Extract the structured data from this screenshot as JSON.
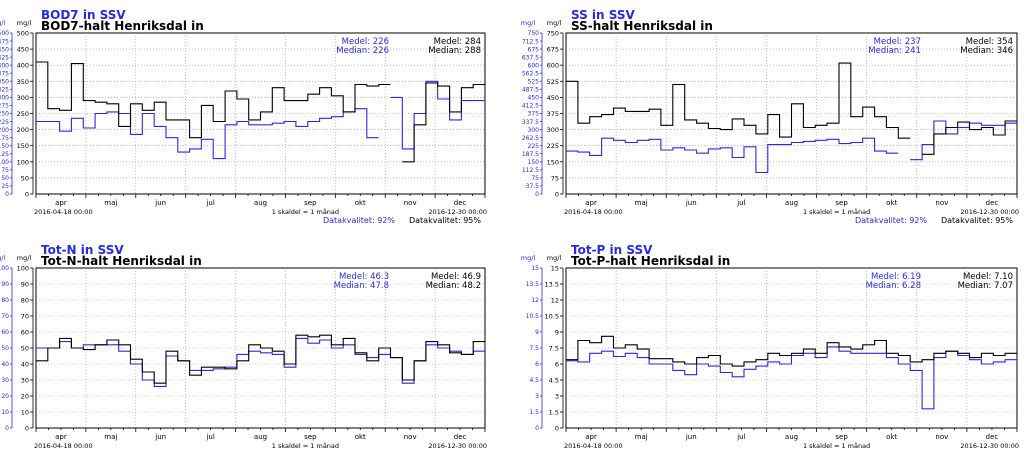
{
  "colors": {
    "blue": "#2a2ad8",
    "black": "#000000",
    "grid": "#9a9a9a"
  },
  "months": [
    "apr",
    "maj",
    "jun",
    "jul",
    "aug",
    "sep",
    "okt",
    "nov",
    "dec"
  ],
  "chart_data": [
    {
      "type": "line",
      "title_blue": "BOD7 in SSV",
      "title_black": "BOD7-halt Henriksdal in",
      "unit_left": "mg/l",
      "unit_right": "mg/l",
      "ylim_blue": [
        0,
        500
      ],
      "ylim_black": [
        0,
        500
      ],
      "yticks_blue": [
        "0",
        "25",
        "50",
        "75",
        "100",
        "125",
        "150",
        "175",
        "200",
        "225",
        "250",
        "275",
        "300",
        "325",
        "350",
        "375",
        "400",
        "425",
        "450",
        "475",
        "500"
      ],
      "yticks_black": [
        "0",
        "50",
        "100",
        "150",
        "200",
        "250",
        "300",
        "350",
        "400",
        "450",
        "500"
      ],
      "date_start": "2016-04-18 00:00",
      "date_end": "2016-12-30 00:00",
      "scale_note": "1 skaldel = 1 månad",
      "blue_stats": [
        "Medel: 226",
        "Median: 226"
      ],
      "black_stats": [
        "Medel: 284",
        "Median: 288"
      ],
      "quality_blue": "Datakvalitet: 92%",
      "quality_black": "Datakvalitet: 95%",
      "series": [
        {
          "name": "BOD7 in SSV",
          "color": "blue",
          "values": [
            225,
            225,
            195,
            235,
            205,
            250,
            255,
            250,
            185,
            250,
            210,
            175,
            130,
            140,
            170,
            110,
            215,
            225,
            215,
            215,
            220,
            225,
            210,
            225,
            235,
            240,
            255,
            265,
            175,
            null,
            300,
            140,
            250,
            350,
            295,
            230,
            290,
            290
          ]
        },
        {
          "name": "BOD7-halt Henriksdal in",
          "color": "black",
          "values": [
            410,
            265,
            260,
            405,
            290,
            285,
            280,
            210,
            280,
            260,
            285,
            230,
            230,
            175,
            275,
            225,
            320,
            295,
            230,
            255,
            330,
            290,
            290,
            310,
            330,
            305,
            255,
            340,
            335,
            340,
            null,
            100,
            215,
            345,
            335,
            255,
            330,
            340
          ]
        }
      ]
    },
    {
      "type": "line",
      "title_blue": "SS in SSV",
      "title_black": "SS-halt Henriksdal in",
      "unit_left": "mg/l",
      "unit_right": "mg/l",
      "ylim_blue": [
        0,
        750
      ],
      "ylim_black": [
        0,
        750
      ],
      "yticks_blue": [
        "0",
        "37.5",
        "75",
        "112.5",
        "150",
        "187.5",
        "225",
        "262.5",
        "300",
        "337.5",
        "375",
        "412.5",
        "450",
        "487.5",
        "525",
        "562.5",
        "600",
        "637.5",
        "675",
        "712.5",
        "750"
      ],
      "yticks_black": [
        "0",
        "75",
        "150",
        "225",
        "300",
        "375",
        "450",
        "525",
        "600",
        "675",
        "750"
      ],
      "date_start": "2016-04-18 00:00",
      "date_end": "2016-12-30 00:00",
      "scale_note": "1 skaldel = 1 månad",
      "blue_stats": [
        "Medel: 237",
        "Median: 241"
      ],
      "black_stats": [
        "Medel: 354",
        "Median: 346"
      ],
      "quality_blue": "Datakvalitet: 92%",
      "quality_black": "Datakvalitet: 95%",
      "series": [
        {
          "name": "SS in SSV",
          "color": "blue",
          "values": [
            200,
            195,
            180,
            260,
            250,
            240,
            250,
            255,
            205,
            215,
            205,
            190,
            210,
            215,
            170,
            220,
            100,
            230,
            230,
            240,
            245,
            250,
            255,
            235,
            240,
            260,
            200,
            190,
            null,
            160,
            230,
            340,
            280,
            310,
            330,
            320,
            320,
            330
          ]
        },
        {
          "name": "SS-halt Henriksdal in",
          "color": "black",
          "values": [
            525,
            330,
            360,
            370,
            400,
            385,
            385,
            395,
            320,
            510,
            345,
            330,
            305,
            300,
            350,
            320,
            280,
            370,
            265,
            420,
            310,
            320,
            330,
            610,
            360,
            405,
            360,
            310,
            260,
            null,
            185,
            280,
            310,
            335,
            300,
            310,
            275,
            340
          ]
        }
      ]
    },
    {
      "type": "line",
      "title_blue": "Tot-N in SSV",
      "title_black": "Tot-N-halt Henriksdal in",
      "unit_left": "mg/l",
      "unit_right": "mg/l",
      "ylim_blue": [
        0,
        100
      ],
      "ylim_black": [
        0,
        100
      ],
      "yticks_blue": [
        "0",
        "10",
        "20",
        "30",
        "40",
        "50",
        "60",
        "70",
        "80",
        "90",
        "100"
      ],
      "yticks_black": [
        "0",
        "10",
        "20",
        "30",
        "40",
        "50",
        "60",
        "70",
        "80",
        "90",
        "100"
      ],
      "date_start": "2016-04-18 00:00",
      "date_end": "2016-12-30 00:00",
      "scale_note": "1 skaldel = 1 månad",
      "blue_stats": [
        "Medel: 46.3",
        "Median: 47.8"
      ],
      "black_stats": [
        "Medel: 46.9",
        "Median: 48.2"
      ],
      "series": [
        {
          "name": "Tot-N in SSV",
          "color": "blue",
          "values": [
            50,
            50,
            54,
            50,
            52,
            52,
            52,
            48,
            40,
            30,
            26,
            45,
            42,
            36,
            36,
            37,
            38,
            46,
            48,
            47,
            46,
            38,
            56,
            53,
            55,
            50,
            52,
            46,
            44,
            46,
            44,
            28,
            42,
            52,
            50,
            48,
            46,
            48
          ]
        },
        {
          "name": "Tot-N-halt Henriksdal in",
          "color": "black",
          "values": [
            42,
            50,
            56,
            50,
            49,
            52,
            55,
            52,
            43,
            35,
            28,
            48,
            42,
            33,
            38,
            38,
            37,
            42,
            52,
            50,
            48,
            40,
            58,
            57,
            58,
            52,
            56,
            47,
            42,
            50,
            44,
            30,
            42,
            54,
            52,
            47,
            46,
            54
          ]
        }
      ]
    },
    {
      "type": "line",
      "title_blue": "Tot-P in SSV",
      "title_black": "Tot-P-halt Henriksdal in",
      "unit_left": "mg/l",
      "unit_right": "mg/l",
      "ylim_blue": [
        0,
        15
      ],
      "ylim_black": [
        0,
        15
      ],
      "yticks_blue": [
        "0",
        "1.5",
        "3",
        "4.5",
        "6",
        "7.5",
        "9",
        "10.5",
        "12",
        "13.5",
        "15"
      ],
      "yticks_black": [
        "0",
        "1.5",
        "3",
        "4.5",
        "6",
        "7.5",
        "9",
        "10.5",
        "12",
        "13.5",
        "15"
      ],
      "date_start": "2016-04-18 00:00",
      "date_end": "2016-12-30 00:00",
      "scale_note": "1 skaldel = 1 månad",
      "blue_stats": [
        "Medel: 6.19",
        "Median: 6.28"
      ],
      "black_stats": [
        "Medel: 7.10",
        "Median: 7.07"
      ],
      "series": [
        {
          "name": "Tot-P in SSV",
          "color": "blue",
          "values": [
            6.3,
            6.2,
            7.0,
            7.2,
            6.7,
            7.0,
            6.6,
            6.0,
            6.0,
            5.4,
            5.0,
            6.0,
            5.8,
            5.2,
            4.8,
            5.5,
            5.8,
            6.2,
            6.0,
            6.8,
            7.0,
            6.6,
            7.6,
            7.2,
            7.0,
            7.0,
            7.0,
            6.6,
            6.0,
            5.4,
            1.8,
            6.6,
            7.2,
            6.8,
            6.4,
            6.0,
            6.2,
            6.4
          ]
        },
        {
          "name": "Tot-P-halt Henriksdal in",
          "color": "black",
          "values": [
            6.4,
            8.2,
            8.0,
            8.6,
            7.5,
            7.8,
            7.4,
            6.5,
            6.5,
            6.2,
            6.0,
            6.6,
            6.8,
            6.0,
            5.8,
            6.2,
            6.4,
            7.0,
            6.8,
            7.0,
            7.4,
            7.0,
            8.0,
            7.6,
            7.4,
            7.8,
            8.2,
            7.0,
            6.8,
            6.2,
            6.4,
            7.0,
            7.2,
            7.0,
            6.6,
            7.0,
            6.8,
            7.0
          ]
        }
      ]
    }
  ]
}
